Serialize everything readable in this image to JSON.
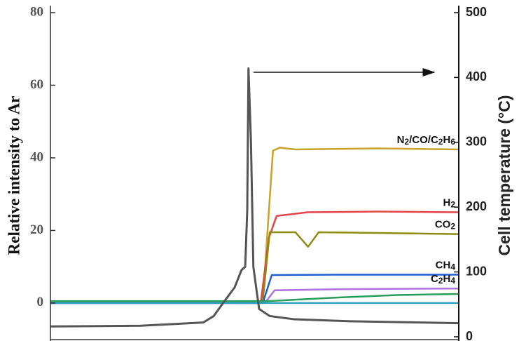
{
  "chart_data": {
    "type": "line",
    "y_label": "Relative intensity to Ar",
    "y2_label": "Cell temperature (°C)",
    "xlim": [
      0,
      100
    ],
    "ylim": [
      -9.3,
      80
    ],
    "yticks": [
      0,
      20,
      40,
      60,
      80
    ],
    "y2lim": [
      0,
      500
    ],
    "y2ticks": [
      0,
      100,
      200,
      300,
      400,
      500
    ],
    "series": [
      {
        "name": "N2/CO/C2H6",
        "color": "#c9a227",
        "x": [
          0,
          52,
          54.5,
          56.2,
          60,
          80,
          100
        ],
        "values": [
          0.5,
          0.5,
          42,
          42.8,
          42.3,
          42.6,
          42.3
        ]
      },
      {
        "name": "H2",
        "color": "#e0454a",
        "x": [
          0,
          51.5,
          53.5,
          55.4,
          60,
          63,
          80,
          100
        ],
        "values": [
          0,
          0,
          18,
          24,
          24.6,
          25,
          25.2,
          25
        ]
      },
      {
        "name": "CO2",
        "color": "#8c8c14",
        "x": [
          0,
          52,
          53.7,
          60,
          63.1,
          65.7,
          80,
          100
        ],
        "values": [
          0.5,
          0.5,
          19.5,
          19.5,
          15.5,
          19.5,
          19.3,
          19
        ]
      },
      {
        "name": "CH4",
        "color": "#1f5fd0",
        "x": [
          0,
          52,
          54.2,
          70,
          100
        ],
        "values": [
          0,
          0,
          7.7,
          7.8,
          7.8
        ]
      },
      {
        "name": "C2H4",
        "color": "#b070e0",
        "x": [
          0,
          52.5,
          54.9,
          70,
          100
        ],
        "values": [
          0,
          0,
          3.5,
          3.8,
          4
        ]
      },
      {
        "color": "#2a9d5a",
        "x": [
          0,
          53,
          70,
          85,
          100
        ],
        "values": [
          0.5,
          0.5,
          1.5,
          2.2,
          2.5
        ]
      },
      {
        "color": "#30a0c0",
        "x": [
          0,
          100
        ],
        "values": [
          0,
          0
        ]
      },
      {
        "color": "#555555",
        "axis": "y2",
        "x": [
          0,
          22,
          37.4,
          40,
          42.5,
          45.1,
          46.8,
          47.7,
          48.2,
          48.5,
          49.1,
          49.7,
          51.1,
          53.7,
          59.7,
          73.4,
          100
        ],
        "values": [
          16,
          17,
          22,
          32,
          54,
          76,
          103,
          108,
          195,
          414,
          303,
          108,
          43,
          32,
          27,
          24,
          21
        ]
      }
    ]
  }
}
